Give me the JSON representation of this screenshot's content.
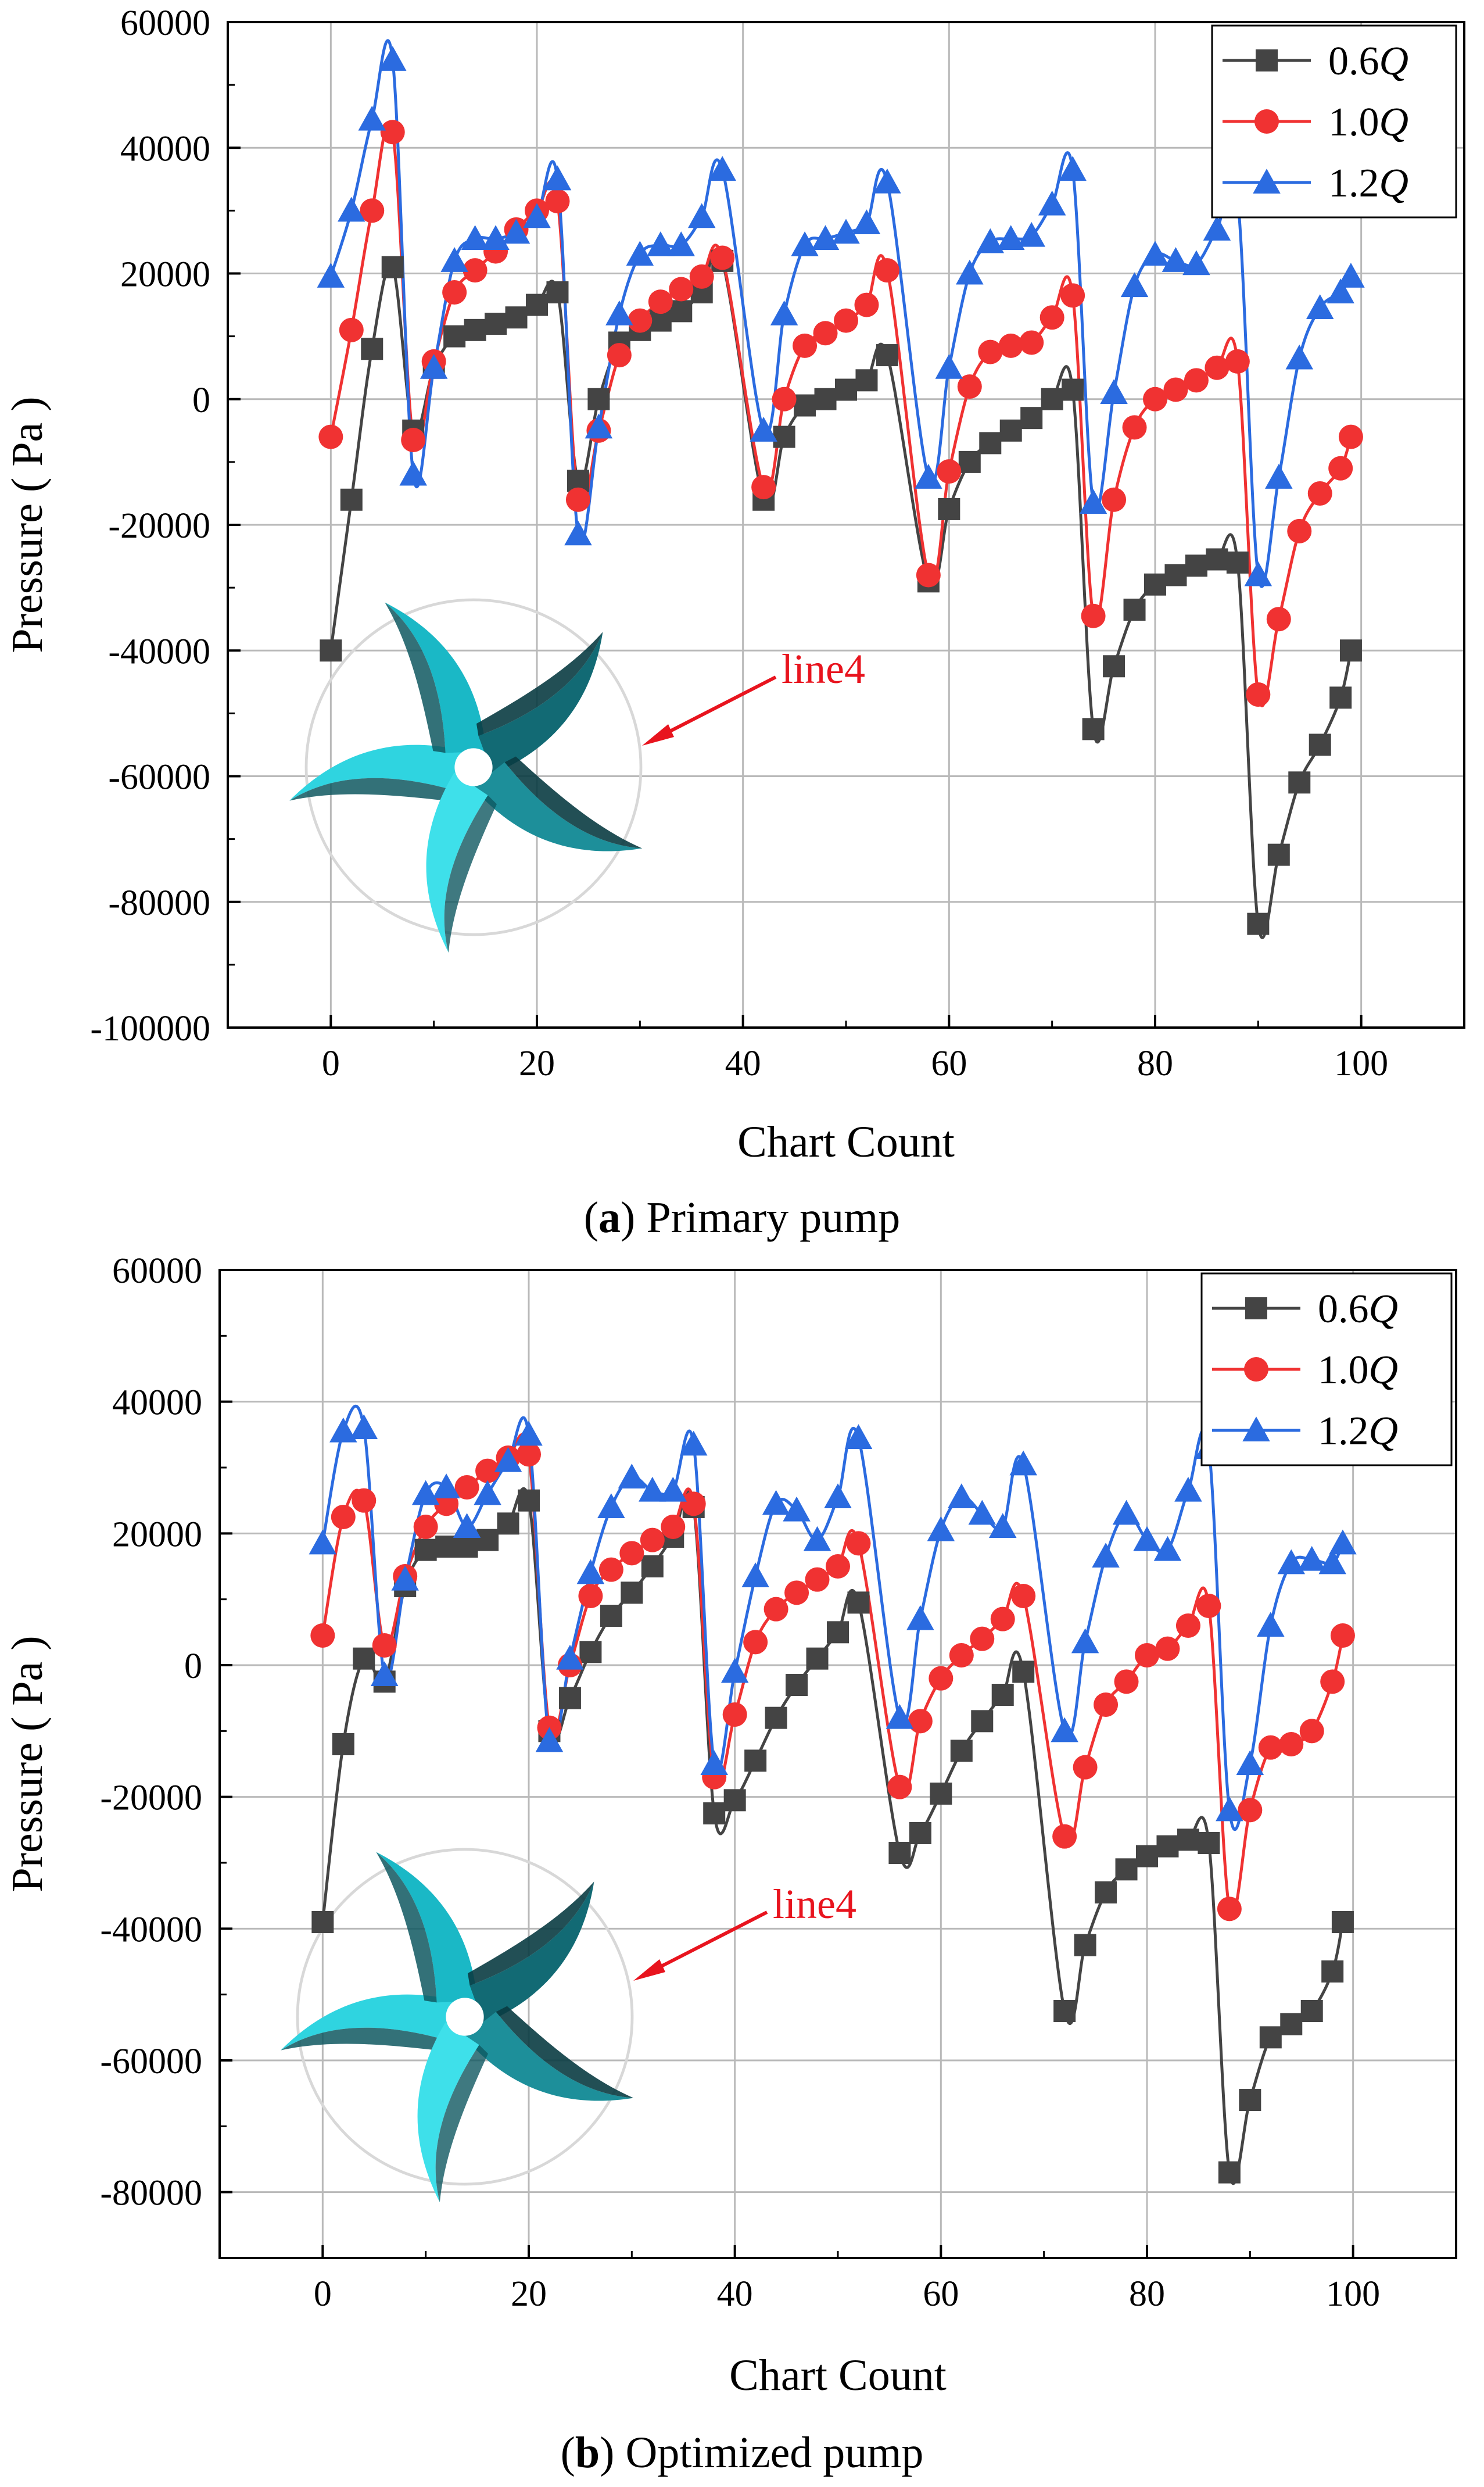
{
  "figure": {
    "panels": [
      {
        "caption_label": "a",
        "caption_text": " Primary pump",
        "annotation_label": "line4",
        "impeller_image": "impeller-icon"
      },
      {
        "caption_label": "b",
        "caption_text": " Optimized pump",
        "annotation_label": "line4",
        "impeller_image": "impeller-icon"
      }
    ],
    "colors": {
      "s06": "#444444",
      "s10": "#f03232",
      "s12": "#2b6be0",
      "annotation": "#e8141e",
      "grid": "#b9b9b9",
      "impeller_light": "#2fd4e0",
      "impeller_dark": "#0f5860"
    }
  },
  "chart_data": [
    {
      "type": "line",
      "title": "(a) Primary pump",
      "xlabel": "Chart Count",
      "ylabel": "Pressure ( Pa )",
      "xlim": [
        -10,
        110
      ],
      "ylim": [
        -100000,
        60000
      ],
      "xticks": [
        0,
        20,
        40,
        60,
        80,
        100
      ],
      "yticks": [
        -100000,
        -80000,
        -60000,
        -40000,
        -20000,
        0,
        20000,
        40000,
        60000
      ],
      "grid": true,
      "legend_position": "top-right",
      "series": [
        {
          "name": "0.6Q",
          "label_num": "0.6",
          "label_var": "Q",
          "marker": "square",
          "color": "#444444",
          "x": [
            0,
            2,
            4,
            6,
            8,
            10,
            12,
            14,
            16,
            18,
            20,
            22,
            24,
            26,
            28,
            30,
            32,
            34,
            36,
            38,
            42,
            44,
            46,
            48,
            50,
            52,
            54,
            58,
            60,
            62,
            64,
            66,
            68,
            70,
            72,
            74,
            76,
            78,
            80,
            82,
            84,
            86,
            88,
            90,
            92,
            94,
            96,
            98,
            99
          ],
          "y": [
            -40000,
            -16000,
            8000,
            21000,
            -5000,
            5000,
            10000,
            11000,
            12000,
            13000,
            15000,
            17000,
            -13000,
            0,
            9000,
            11000,
            12500,
            14000,
            17000,
            22000,
            -16000,
            -6000,
            -1000,
            0,
            1500,
            3000,
            7000,
            -29000,
            -17500,
            -10000,
            -7000,
            -5000,
            -3000,
            0,
            1500,
            -52500,
            -42500,
            -33500,
            -29500,
            -28000,
            -26500,
            -25500,
            -26000,
            -83500,
            -72500,
            -61000,
            -55000,
            -47500,
            -40000
          ]
        },
        {
          "name": "1.0Q",
          "label_num": "1.0",
          "label_var": "Q",
          "marker": "circle",
          "color": "#f03232",
          "x": [
            0,
            2,
            4,
            6,
            8,
            10,
            12,
            14,
            16,
            18,
            20,
            22,
            24,
            26,
            28,
            30,
            32,
            34,
            36,
            38,
            42,
            44,
            46,
            48,
            50,
            52,
            54,
            58,
            60,
            62,
            64,
            66,
            68,
            70,
            72,
            74,
            76,
            78,
            80,
            82,
            84,
            86,
            88,
            90,
            92,
            94,
            96,
            98,
            99
          ],
          "y": [
            -6000,
            11000,
            30000,
            42500,
            -6500,
            6000,
            17000,
            20500,
            23500,
            27000,
            30000,
            31500,
            -16000,
            -5000,
            7000,
            12500,
            15500,
            17500,
            19500,
            22500,
            -14000,
            0,
            8500,
            10500,
            12500,
            15000,
            20500,
            -28000,
            -11500,
            2000,
            7500,
            8500,
            9000,
            13000,
            16500,
            -34500,
            -16000,
            -4500,
            0,
            1500,
            3000,
            5000,
            6000,
            -47000,
            -35000,
            -21000,
            -15000,
            -11000,
            -6000
          ]
        },
        {
          "name": "1.2Q",
          "label_num": "1.2",
          "label_var": "Q",
          "marker": "triangle",
          "color": "#2b6be0",
          "x": [
            0,
            2,
            4,
            6,
            8,
            10,
            12,
            14,
            16,
            18,
            20,
            22,
            24,
            26,
            28,
            30,
            32,
            34,
            36,
            38,
            42,
            44,
            46,
            48,
            50,
            52,
            54,
            58,
            60,
            62,
            64,
            66,
            68,
            70,
            72,
            74,
            76,
            78,
            80,
            82,
            84,
            86,
            88,
            90,
            92,
            94,
            96,
            98,
            99
          ],
          "y": [
            19500,
            30000,
            44500,
            54000,
            -12000,
            5000,
            22000,
            25500,
            25500,
            26500,
            29000,
            35000,
            -21500,
            -4500,
            13500,
            23000,
            24500,
            24500,
            29000,
            36500,
            -5000,
            13500,
            24500,
            25500,
            26500,
            28000,
            34500,
            -12500,
            5000,
            20000,
            25000,
            25500,
            26000,
            31000,
            36500,
            -16500,
            1000,
            18000,
            23000,
            22000,
            21500,
            27000,
            32000,
            -28000,
            -12500,
            6500,
            14500,
            17000,
            19500
          ]
        }
      ]
    },
    {
      "type": "line",
      "title": "(b) Optimized pump",
      "xlabel": "Chart Count",
      "ylabel": "Pressure ( Pa )",
      "xlim": [
        -10,
        110
      ],
      "ylim": [
        -90000,
        60000
      ],
      "xticks": [
        0,
        20,
        40,
        60,
        80,
        100
      ],
      "yticks": [
        -80000,
        -60000,
        -40000,
        -20000,
        0,
        20000,
        40000,
        60000
      ],
      "grid": true,
      "legend_position": "top-right",
      "series": [
        {
          "name": "0.6Q",
          "label_num": "0.6",
          "label_var": "Q",
          "marker": "square",
          "color": "#444444",
          "x": [
            0,
            2,
            4,
            6,
            8,
            10,
            12,
            14,
            16,
            18,
            20,
            22,
            24,
            26,
            28,
            30,
            32,
            34,
            36,
            38,
            40,
            42,
            44,
            46,
            48,
            50,
            52,
            56,
            58,
            60,
            62,
            64,
            66,
            68,
            72,
            74,
            76,
            78,
            80,
            82,
            84,
            86,
            88,
            90,
            92,
            94,
            96,
            98,
            99
          ],
          "y": [
            -39000,
            -12000,
            1000,
            -2500,
            12000,
            17500,
            18000,
            18000,
            19000,
            21500,
            25000,
            -10000,
            -5000,
            2000,
            7500,
            11000,
            15000,
            19500,
            24000,
            -22500,
            -20500,
            -14500,
            -8000,
            -3000,
            1000,
            5000,
            9500,
            -28500,
            -25500,
            -19500,
            -13000,
            -8500,
            -4500,
            -1000,
            -52500,
            -42500,
            -34500,
            -31000,
            -29000,
            -27500,
            -26500,
            -27000,
            -77000,
            -66000,
            -56500,
            -54500,
            -52500,
            -46500,
            -39000
          ]
        },
        {
          "name": "1.0Q",
          "label_num": "1.0",
          "label_var": "Q",
          "marker": "circle",
          "color": "#f03232",
          "x": [
            0,
            2,
            4,
            6,
            8,
            10,
            12,
            14,
            16,
            18,
            20,
            22,
            24,
            26,
            28,
            30,
            32,
            34,
            36,
            38,
            40,
            42,
            44,
            46,
            48,
            50,
            52,
            56,
            58,
            60,
            62,
            64,
            66,
            68,
            72,
            74,
            76,
            78,
            80,
            82,
            84,
            86,
            88,
            90,
            92,
            94,
            96,
            98,
            99
          ],
          "y": [
            4500,
            22500,
            25000,
            3000,
            13500,
            21000,
            24500,
            27000,
            29500,
            31500,
            32000,
            -9500,
            0,
            10500,
            14500,
            17000,
            19000,
            21000,
            24500,
            -17000,
            -7500,
            3500,
            8500,
            11000,
            13000,
            15000,
            18500,
            -18500,
            -8500,
            -2000,
            1500,
            4000,
            7000,
            10500,
            -26000,
            -15500,
            -6000,
            -2500,
            1500,
            2500,
            6000,
            9000,
            -37000,
            -22000,
            -12500,
            -12000,
            -10000,
            -2500,
            4500
          ]
        },
        {
          "name": "1.2Q",
          "label_num": "1.2",
          "label_var": "Q",
          "marker": "triangle",
          "color": "#2b6be0",
          "x": [
            0,
            2,
            4,
            6,
            8,
            10,
            12,
            14,
            16,
            18,
            20,
            22,
            24,
            26,
            28,
            30,
            32,
            34,
            36,
            38,
            40,
            42,
            44,
            46,
            48,
            50,
            52,
            56,
            58,
            60,
            62,
            64,
            66,
            68,
            72,
            74,
            76,
            78,
            80,
            82,
            84,
            86,
            88,
            90,
            92,
            94,
            96,
            98,
            99
          ],
          "y": [
            18500,
            35500,
            36000,
            -1500,
            13000,
            26000,
            27000,
            21000,
            26000,
            31000,
            35000,
            -11500,
            1000,
            14000,
            24000,
            28500,
            26500,
            26500,
            33500,
            -15000,
            -1000,
            13500,
            24500,
            23500,
            19000,
            25500,
            34500,
            -8000,
            7000,
            20500,
            25500,
            23000,
            21000,
            30500,
            -10000,
            3500,
            16500,
            23000,
            19000,
            17500,
            26500,
            33000,
            -22000,
            -15000,
            6000,
            15500,
            16000,
            15500,
            18500
          ]
        }
      ]
    }
  ]
}
